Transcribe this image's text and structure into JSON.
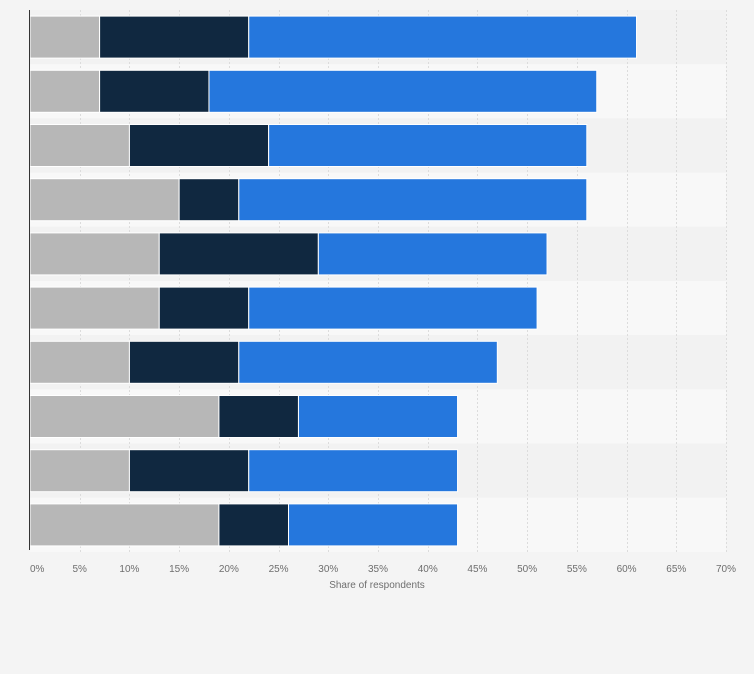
{
  "chart_data": {
    "type": "bar",
    "orientation": "horizontal",
    "stacked": true,
    "xlabel": "Share of respondents",
    "xlim": [
      0,
      70
    ],
    "x_ticks": [
      "0%",
      "5%",
      "10%",
      "15%",
      "20%",
      "25%",
      "30%",
      "35%",
      "40%",
      "45%",
      "50%",
      "55%",
      "60%",
      "65%",
      "70%"
    ],
    "grid": true,
    "series": [
      {
        "values": [
          7,
          7,
          10,
          15,
          13,
          13,
          10,
          19,
          10,
          19
        ],
        "color": "#b7b7b7"
      },
      {
        "values": [
          15,
          11,
          14,
          6,
          16,
          9,
          11,
          8,
          12,
          7
        ],
        "color": "#102840"
      },
      {
        "values": [
          39,
          39,
          32,
          35,
          23,
          29,
          26,
          16,
          21,
          17
        ],
        "color": "#2577dd"
      }
    ]
  }
}
